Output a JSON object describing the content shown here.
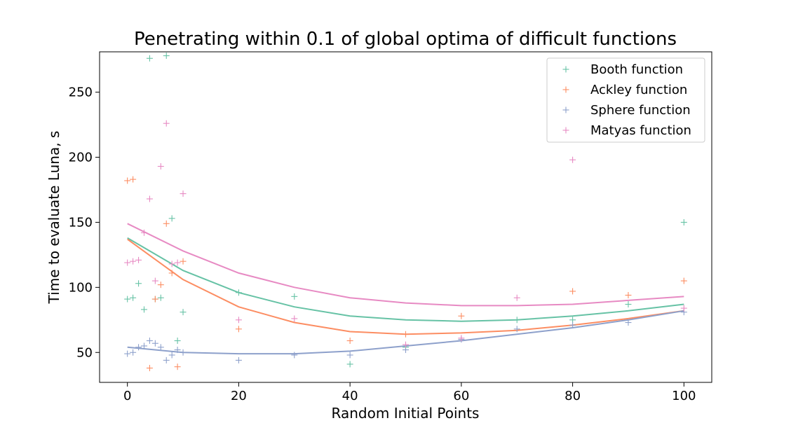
{
  "chart_data": {
    "type": "scatter",
    "title": "Penetrating within 0.1 of global optima of difficult functions",
    "xlabel": "Random Initial Points",
    "ylabel": "Time to evaluate Luna, s",
    "xlim": [
      -5,
      105
    ],
    "ylim": [
      27,
      281
    ],
    "xticks": [
      0,
      20,
      40,
      60,
      80,
      100
    ],
    "yticks": [
      50,
      100,
      150,
      200,
      250
    ],
    "legend_position": "top-right",
    "grid": false,
    "series": [
      {
        "name": "Booth function",
        "color": "#66c2a5",
        "points": [
          [
            0,
            91
          ],
          [
            1,
            92
          ],
          [
            2,
            103
          ],
          [
            3,
            83
          ],
          [
            4,
            276
          ],
          [
            5,
            91
          ],
          [
            6,
            92
          ],
          [
            7,
            278
          ],
          [
            8,
            153
          ],
          [
            9,
            59
          ],
          [
            10,
            81
          ],
          [
            20,
            96
          ],
          [
            30,
            93
          ],
          [
            40,
            41
          ],
          [
            50,
            54
          ],
          [
            70,
            75
          ],
          [
            80,
            75
          ],
          [
            90,
            87
          ],
          [
            100,
            150
          ]
        ],
        "fit": [
          [
            0,
            138
          ],
          [
            10,
            113
          ],
          [
            20,
            96
          ],
          [
            30,
            85
          ],
          [
            40,
            78
          ],
          [
            50,
            75
          ],
          [
            60,
            74
          ],
          [
            70,
            75
          ],
          [
            80,
            78
          ],
          [
            90,
            82
          ],
          [
            100,
            87
          ]
        ]
      },
      {
        "name": "Ackley function",
        "color": "#fc8d62",
        "points": [
          [
            0,
            182
          ],
          [
            1,
            183
          ],
          [
            4,
            38
          ],
          [
            5,
            91
          ],
          [
            6,
            102
          ],
          [
            7,
            149
          ],
          [
            8,
            111
          ],
          [
            9,
            39
          ],
          [
            10,
            120
          ],
          [
            20,
            68
          ],
          [
            40,
            59
          ],
          [
            50,
            64
          ],
          [
            60,
            78
          ],
          [
            80,
            97
          ],
          [
            90,
            94
          ],
          [
            100,
            105
          ]
        ],
        "fit": [
          [
            0,
            137
          ],
          [
            10,
            106
          ],
          [
            20,
            85
          ],
          [
            30,
            73
          ],
          [
            40,
            66
          ],
          [
            50,
            64
          ],
          [
            60,
            65
          ],
          [
            70,
            67
          ],
          [
            80,
            71
          ],
          [
            90,
            76
          ],
          [
            100,
            82
          ]
        ]
      },
      {
        "name": "Sphere function",
        "color": "#8da0cb",
        "points": [
          [
            0,
            49
          ],
          [
            1,
            50
          ],
          [
            2,
            54
          ],
          [
            3,
            55
          ],
          [
            4,
            59
          ],
          [
            5,
            57
          ],
          [
            6,
            54
          ],
          [
            7,
            44
          ],
          [
            8,
            48
          ],
          [
            9,
            52
          ],
          [
            10,
            50
          ],
          [
            20,
            44
          ],
          [
            30,
            48
          ],
          [
            40,
            48
          ],
          [
            50,
            52
          ],
          [
            60,
            60
          ],
          [
            70,
            68
          ],
          [
            80,
            71
          ],
          [
            90,
            73
          ],
          [
            100,
            81
          ]
        ],
        "fit": [
          [
            0,
            54
          ],
          [
            10,
            50
          ],
          [
            20,
            49
          ],
          [
            30,
            49
          ],
          [
            40,
            51
          ],
          [
            50,
            55
          ],
          [
            60,
            59
          ],
          [
            70,
            64
          ],
          [
            80,
            69
          ],
          [
            90,
            75
          ],
          [
            100,
            82
          ]
        ]
      },
      {
        "name": "Matyas function",
        "color": "#e78ac3",
        "points": [
          [
            0,
            119
          ],
          [
            1,
            120
          ],
          [
            2,
            121
          ],
          [
            3,
            142
          ],
          [
            4,
            168
          ],
          [
            5,
            105
          ],
          [
            6,
            193
          ],
          [
            7,
            226
          ],
          [
            8,
            118
          ],
          [
            9,
            119
          ],
          [
            10,
            172
          ],
          [
            20,
            75
          ],
          [
            30,
            76
          ],
          [
            50,
            56
          ],
          [
            60,
            61
          ],
          [
            70,
            92
          ],
          [
            80,
            198
          ],
          [
            100,
            84
          ]
        ],
        "fit": [
          [
            0,
            149
          ],
          [
            10,
            128
          ],
          [
            20,
            111
          ],
          [
            30,
            100
          ],
          [
            40,
            92
          ],
          [
            50,
            88
          ],
          [
            60,
            86
          ],
          [
            70,
            86
          ],
          [
            80,
            87
          ],
          [
            90,
            90
          ],
          [
            100,
            93
          ]
        ]
      }
    ]
  }
}
